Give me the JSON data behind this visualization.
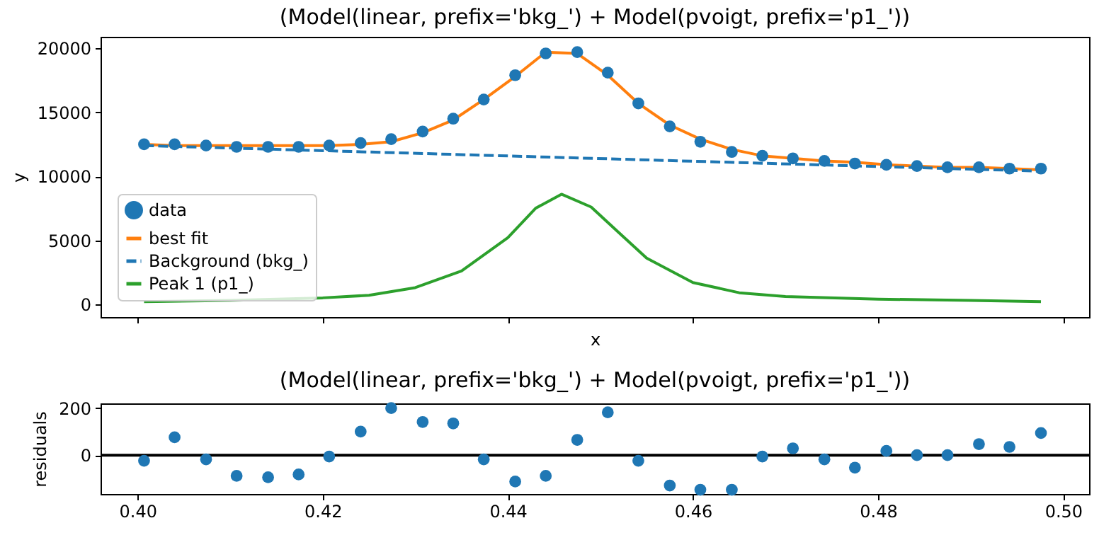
{
  "chart_data": [
    {
      "type": "scatter",
      "title": "(Model(linear, prefix='bkg_') + Model(pvoigt, prefix='p1_'))",
      "xlabel": "x",
      "ylabel": "y",
      "x": [
        0.4007,
        0.404,
        0.4074,
        0.4107,
        0.4141,
        0.4174,
        0.4207,
        0.4241,
        0.4274,
        0.4308,
        0.4341,
        0.4374,
        0.4408,
        0.4441,
        0.4475,
        0.4508,
        0.4541,
        0.4575,
        0.4608,
        0.4642,
        0.4675,
        0.4708,
        0.4742,
        0.4775,
        0.4809,
        0.4842,
        0.4875,
        0.4909,
        0.4942,
        0.4976
      ],
      "series": [
        {
          "name": "data",
          "type": "scatter",
          "marker": "circle",
          "color": "#1f77b4",
          "values": [
            12500,
            12500,
            12400,
            12300,
            12300,
            12300,
            12400,
            12600,
            12900,
            13500,
            14500,
            16000,
            17900,
            19600,
            19700,
            18100,
            15700,
            13900,
            12700,
            11900,
            11600,
            11400,
            11200,
            11000,
            10900,
            10800,
            10700,
            10700,
            10600,
            10600
          ]
        },
        {
          "name": "best fit",
          "type": "line",
          "line_style": "solid",
          "color": "#ff7f0e",
          "values": [
            12500,
            12400,
            12400,
            12400,
            12400,
            12400,
            12400,
            12500,
            12700,
            13400,
            14400,
            16000,
            17800,
            19700,
            19600,
            17900,
            15700,
            14000,
            12900,
            12100,
            11600,
            11400,
            11200,
            11100,
            10900,
            10800,
            10700,
            10700,
            10600,
            10500
          ]
        },
        {
          "name": "Background (bkg_)",
          "type": "line",
          "line_style": "dashed",
          "color": "#1f77b4",
          "x": [
            0.4007,
            0.4976
          ],
          "values": [
            12400,
            10400
          ]
        },
        {
          "name": "Peak 1 (p1_)",
          "type": "line",
          "line_style": "solid",
          "color": "#2ca02c",
          "x": [
            0.4007,
            0.41,
            0.42,
            0.425,
            0.43,
            0.435,
            0.44,
            0.443,
            0.4458,
            0.449,
            0.452,
            0.455,
            0.46,
            0.465,
            0.47,
            0.48,
            0.49,
            0.4976
          ],
          "values": [
            200,
            300,
            500,
            700,
            1300,
            2600,
            5200,
            7500,
            8600,
            7600,
            5600,
            3600,
            1700,
            900,
            600,
            400,
            300,
            200
          ]
        }
      ],
      "xlim": [
        0.396,
        0.5028
      ],
      "xticks": [
        0.4,
        0.42,
        0.44,
        0.46,
        0.48,
        0.5
      ],
      "ylim": [
        -1000,
        20900
      ],
      "yticks": [
        0,
        5000,
        10000,
        15000,
        20000
      ],
      "tick_labels": "y",
      "grid": false,
      "legend": "bottom left"
    },
    {
      "type": "scatter",
      "title": "(Model(linear, prefix='bkg_') + Model(pvoigt, prefix='p1_'))",
      "ylabel": "residuals",
      "x": [
        0.4007,
        0.404,
        0.4074,
        0.4107,
        0.4141,
        0.4174,
        0.4207,
        0.4241,
        0.4274,
        0.4308,
        0.4341,
        0.4374,
        0.4408,
        0.4441,
        0.4475,
        0.4508,
        0.4541,
        0.4575,
        0.4608,
        0.4642,
        0.4675,
        0.4708,
        0.4742,
        0.4775,
        0.4809,
        0.4842,
        0.4875,
        0.4909,
        0.4942,
        0.4976
      ],
      "series": [
        {
          "type": "scatter",
          "marker": "circle",
          "color": "#1f77b4",
          "values": [
            -24,
            76,
            -18,
            -88,
            -94,
            -82,
            -6,
            100,
            200,
            141,
            135,
            -18,
            -112,
            -88,
            65,
            182,
            -24,
            -129,
            -147,
            -147,
            -6,
            29,
            -18,
            -53,
            18,
            0,
            0,
            47,
            35,
            94
          ]
        }
      ],
      "xlim": [
        0.396,
        0.5028
      ],
      "xticks": [
        {
          "value": 0.4,
          "label": "0.40"
        },
        {
          "value": 0.42,
          "label": "0.42"
        },
        {
          "value": 0.44,
          "label": "0.44"
        },
        {
          "value": 0.46,
          "label": "0.46"
        },
        {
          "value": 0.48,
          "label": "0.48"
        },
        {
          "value": 0.5,
          "label": "0.50"
        }
      ],
      "ylim": [
        -165,
        220
      ],
      "yticks": [
        0,
        200
      ],
      "ref_lines": [
        {
          "axis": "y",
          "value": 0,
          "color": "#000000"
        }
      ],
      "grid": false,
      "legend": false
    }
  ]
}
